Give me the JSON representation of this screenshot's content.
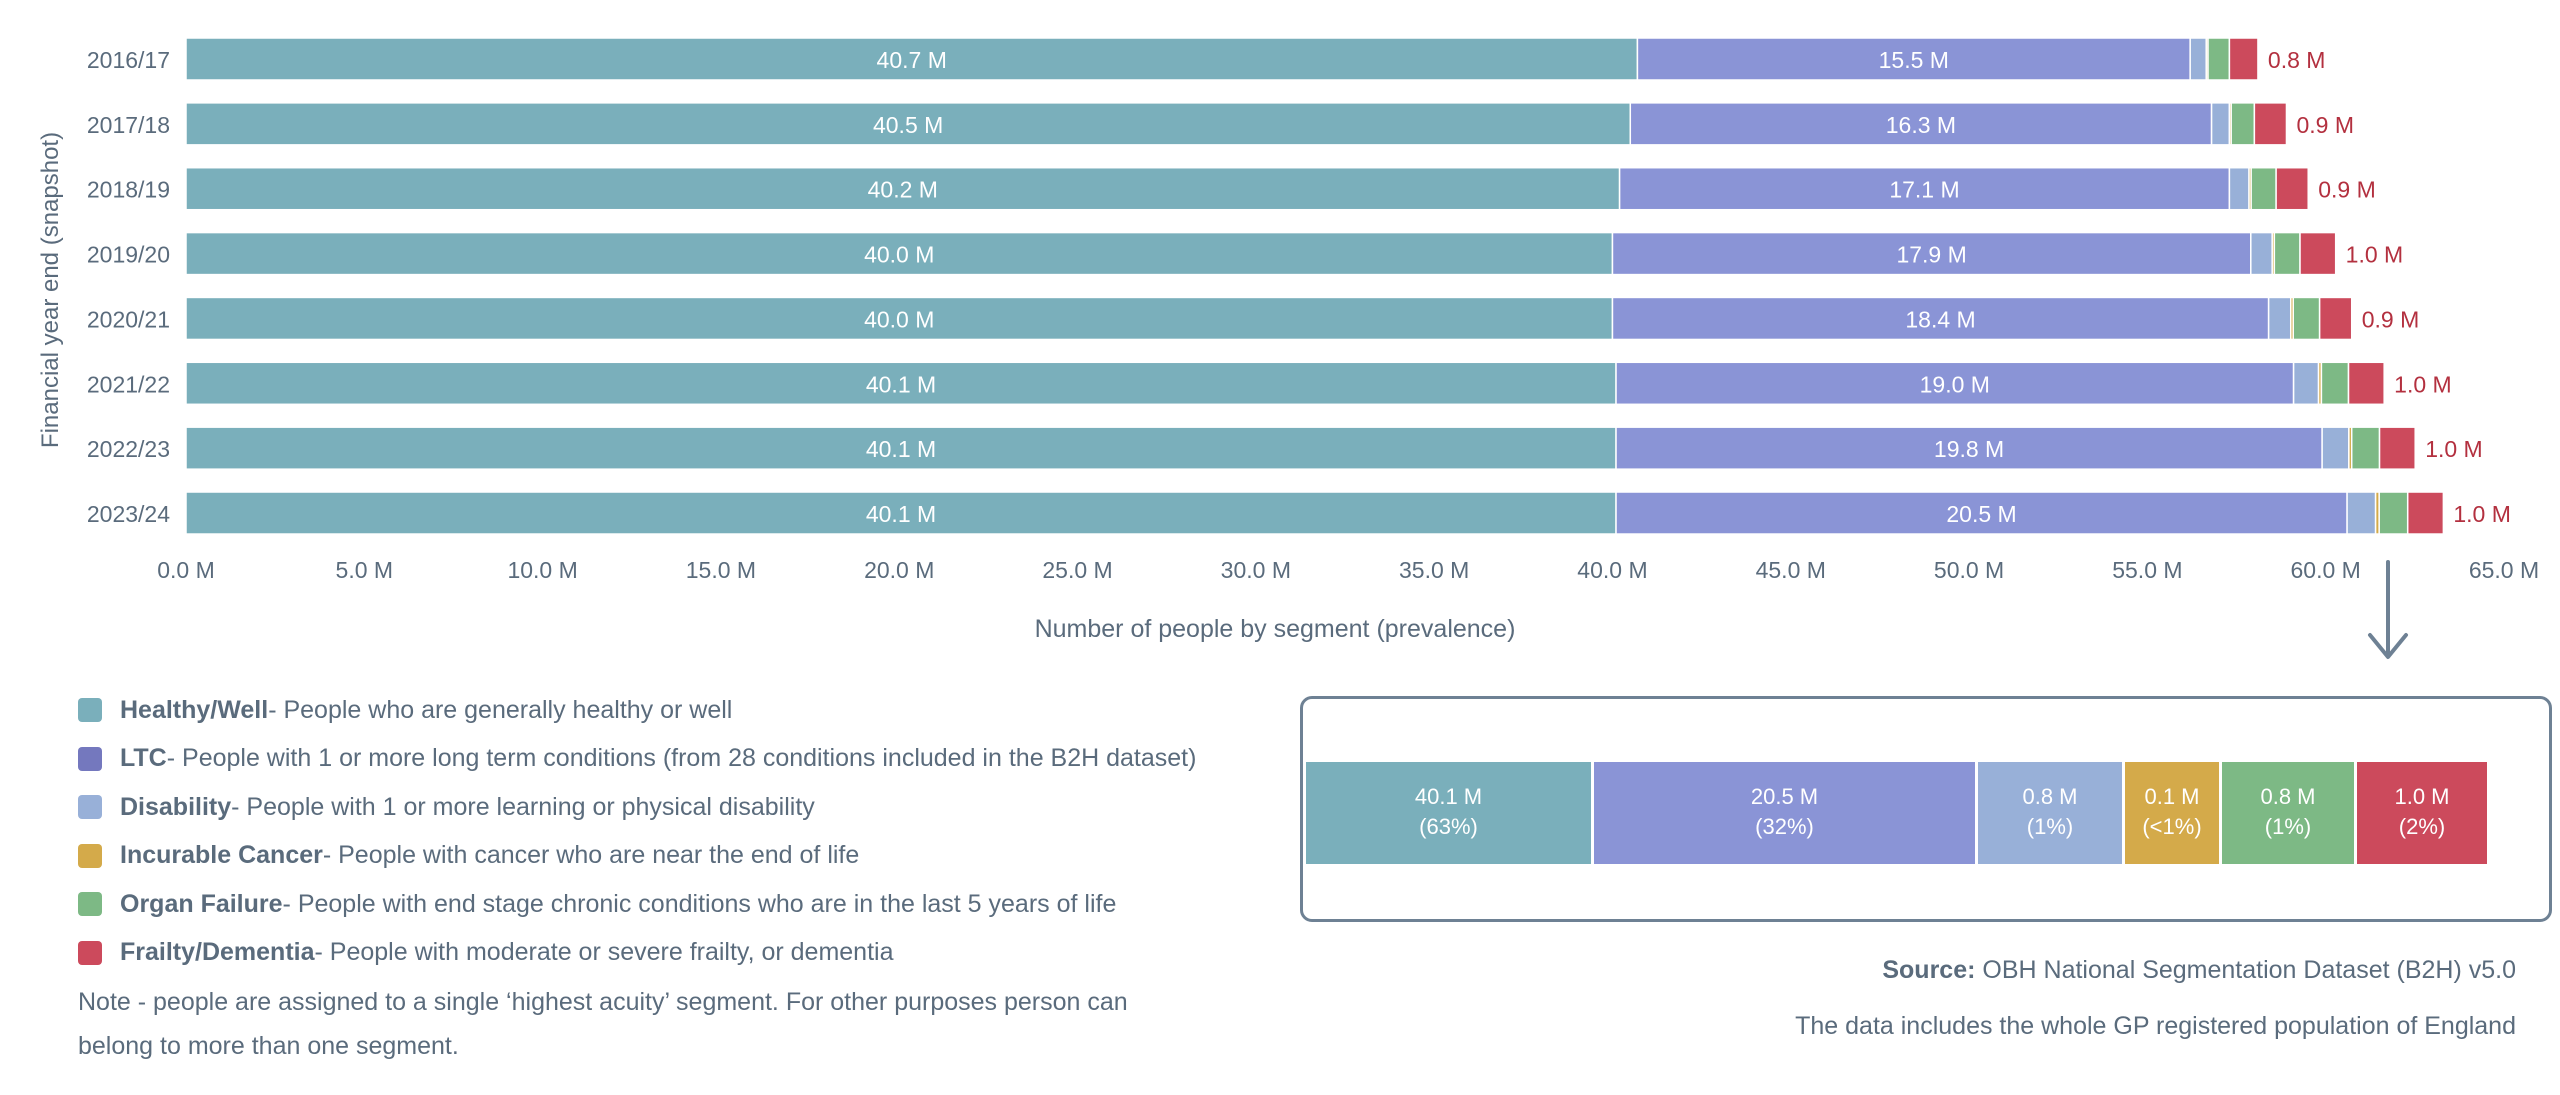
{
  "chart_data": [
    {
      "type": "bar",
      "orientation": "horizontal",
      "stacked": true,
      "ylabel": "Financial year end (snapshot)",
      "xlabel": "Number of people by segment (prevalence)",
      "categories": [
        "2016/17",
        "2017/18",
        "2018/19",
        "2019/20",
        "2020/21",
        "2021/22",
        "2022/23",
        "2023/24"
      ],
      "xlim": [
        0,
        65
      ],
      "x_ticks": [
        "0.0 M",
        "5.0 M",
        "10.0 M",
        "15.0 M",
        "20.0 M",
        "25.0 M",
        "30.0 M",
        "35.0 M",
        "40.0 M",
        "45.0 M",
        "50.0 M",
        "55.0 M",
        "60.0 M",
        "65.0 M"
      ],
      "x_tick_values": [
        0,
        5,
        10,
        15,
        20,
        25,
        30,
        35,
        40,
        45,
        50,
        55,
        60,
        65
      ],
      "series": [
        {
          "name": "Healthy/Well",
          "color": "#7aafbb",
          "values": [
            40.7,
            40.5,
            40.2,
            40.0,
            40.0,
            40.1,
            40.1,
            40.1
          ],
          "labels": [
            "40.7 M",
            "40.5 M",
            "40.2 M",
            "40.0 M",
            "40.0 M",
            "40.1 M",
            "40.1 M",
            "40.1 M"
          ]
        },
        {
          "name": "LTC",
          "color": "#8a94d6",
          "values": [
            15.5,
            16.3,
            17.1,
            17.9,
            18.4,
            19.0,
            19.8,
            20.5
          ],
          "labels": [
            "15.5 M",
            "16.3 M",
            "17.1 M",
            "17.9 M",
            "18.4 M",
            "19.0 M",
            "19.8 M",
            "20.5 M"
          ]
        },
        {
          "name": "Disability",
          "color": "#98b0d8",
          "values": [
            0.45,
            0.5,
            0.55,
            0.6,
            0.62,
            0.7,
            0.75,
            0.8
          ]
        },
        {
          "name": "Incurable Cancer",
          "color": "#d4aa4a",
          "values": [
            0.05,
            0.05,
            0.06,
            0.06,
            0.07,
            0.08,
            0.08,
            0.1
          ]
        },
        {
          "name": "Organ Failure",
          "color": "#7db985",
          "values": [
            0.6,
            0.65,
            0.7,
            0.72,
            0.74,
            0.76,
            0.78,
            0.8
          ]
        },
        {
          "name": "Frailty/Dementia",
          "color": "#cc4a5c",
          "values": [
            0.8,
            0.9,
            0.9,
            1.0,
            0.9,
            1.0,
            1.0,
            1.0
          ],
          "labels": [
            "0.8 M",
            "0.9 M",
            "0.9 M",
            "1.0 M",
            "0.9 M",
            "1.0 M",
            "1.0 M",
            "1.0 M"
          ]
        }
      ]
    },
    {
      "type": "bar",
      "orientation": "horizontal",
      "stacked": true,
      "category": "2023/24",
      "segments": [
        {
          "name": "Healthy/Well",
          "value": 40.1,
          "color": "#7aafbb",
          "label": "40.1 M",
          "pct": "(63%)"
        },
        {
          "name": "LTC",
          "value": 20.5,
          "color": "#8a94d6",
          "label": "20.5 M",
          "pct": "(32%)"
        },
        {
          "name": "Disability",
          "value": 0.8,
          "color": "#98b0d8",
          "label": "0.8 M",
          "pct": "(1%)"
        },
        {
          "name": "Incurable Cancer",
          "value": 0.1,
          "color": "#d4aa4a",
          "label": "0.1 M",
          "pct": "(<1%)"
        },
        {
          "name": "Organ Failure",
          "value": 0.8,
          "color": "#7db985",
          "label": "0.8 M",
          "pct": "(1%)"
        },
        {
          "name": "Frailty/Dementia",
          "value": 1.0,
          "color": "#cc4a5c",
          "label": "1.0 M",
          "pct": "(2%)"
        }
      ]
    }
  ],
  "legend": [
    {
      "name": "Healthy/Well",
      "description": " - People who are generally healthy or well",
      "color": "#7aafbb"
    },
    {
      "name": "LTC",
      "description": " - People with 1 or more long term conditions (from 28 conditions included in the B2H dataset)",
      "color": "#7478be"
    },
    {
      "name": "Disability",
      "description": " - People with 1 or more learning or physical disability",
      "color": "#98b0d8"
    },
    {
      "name": "Incurable Cancer",
      "description": " - People with cancer who are near the end of life",
      "color": "#d4aa4a"
    },
    {
      "name": "Organ Failure",
      "description": " - People with end stage chronic conditions who are in the last 5 years of life",
      "color": "#7db985"
    },
    {
      "name": "Frailty/Dementia",
      "description": " - People with moderate or severe frailty, or dementia",
      "color": "#cc4a5c"
    }
  ],
  "note": "Note - people are assigned to a single ‘highest acuity’ segment. For other purposes person can belong to more than one segment.",
  "source": {
    "label": "Source:",
    "text": " OBH National Segmentation Dataset (B2H) v5.0"
  },
  "coverage": "The data includes the whole GP registered population of England",
  "colors": {
    "text": "#5a6b7c",
    "red_label": "#b3303f",
    "arrow": "#6e8194",
    "inset_border": "#6e8194"
  }
}
